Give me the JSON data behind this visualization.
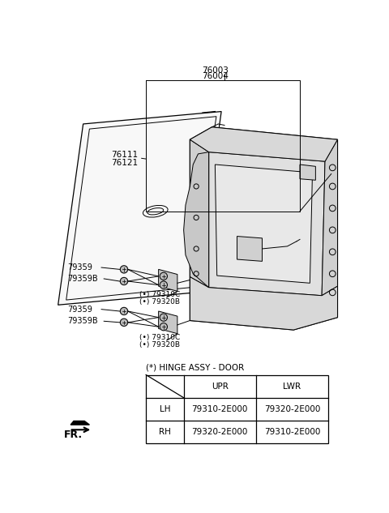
{
  "bg_color": "#ffffff",
  "lc": "#000000",
  "gray1": "#d4d4d4",
  "gray2": "#e8e8e8",
  "gray3": "#c0c0c0",
  "label_76003": "76003",
  "label_76004": "76004",
  "label_76111": "76111",
  "label_76121": "76121",
  "label_79359": "79359",
  "label_79359B": "79359B",
  "label_79310C": "(•) 79310C",
  "label_79320B": "(•) 79320B",
  "label_note": "(*) HINGE ASSY - DOOR",
  "label_fr": "FR.",
  "col_header": [
    "",
    "UPR",
    "LWR"
  ],
  "row_lh": [
    "LH",
    "79310-2E000",
    "79320-2E000"
  ],
  "row_rh": [
    "RH",
    "79320-2E000",
    "79310-2E000"
  ]
}
